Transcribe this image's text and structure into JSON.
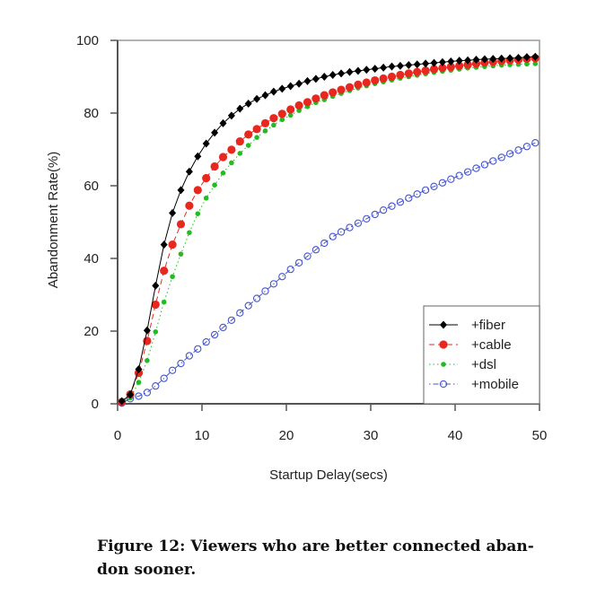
{
  "chart_data": {
    "type": "line",
    "xlabel": "Startup Delay(secs)",
    "ylabel": "Abandonment Rate(%)",
    "xlim": [
      0,
      50
    ],
    "ylim": [
      0,
      100
    ],
    "xticks": [
      "0",
      "10",
      "20",
      "30",
      "40",
      "50"
    ],
    "yticks": [
      "0",
      "20",
      "40",
      "60",
      "80",
      "100"
    ],
    "legend_position": "bottom-right",
    "x": [
      0.5,
      1.5,
      2.5,
      3.5,
      4.5,
      5.5,
      6.5,
      7.5,
      8.5,
      9.5,
      10.5,
      11.5,
      12.5,
      13.5,
      14.5,
      15.5,
      16.5,
      17.5,
      18.5,
      19.5,
      20.5,
      21.5,
      22.5,
      23.5,
      24.5,
      25.5,
      26.5,
      27.5,
      28.5,
      29.5,
      30.5,
      31.5,
      32.5,
      33.5,
      34.5,
      35.5,
      36.5,
      37.5,
      38.5,
      39.5,
      40.5,
      41.5,
      42.5,
      43.5,
      44.5,
      45.5,
      46.5,
      47.5,
      48.5,
      49.5
    ],
    "series": [
      {
        "name": "+fiber",
        "color": "#000000",
        "marker": "diamond",
        "line": "solid",
        "values": [
          0.7,
          2.5,
          9.5,
          20.2,
          32.5,
          43.8,
          52.5,
          58.8,
          63.9,
          68.1,
          71.6,
          74.6,
          77.2,
          79.3,
          81.2,
          82.6,
          83.9,
          84.9,
          85.9,
          86.7,
          87.4,
          88.1,
          88.8,
          89.4,
          90.0,
          90.5,
          90.9,
          91.3,
          91.6,
          91.9,
          92.2,
          92.5,
          92.8,
          93.0,
          93.2,
          93.4,
          93.6,
          93.8,
          94.0,
          94.2,
          94.4,
          94.5,
          94.7,
          94.8,
          94.9,
          95.0,
          95.1,
          95.2,
          95.4,
          95.5
        ]
      },
      {
        "name": "+cable",
        "color": "#e8281e",
        "marker": "filled-circle",
        "line": "dashed",
        "values": [
          0.5,
          2.6,
          8.5,
          17.3,
          27.3,
          36.6,
          43.8,
          49.4,
          54.5,
          58.8,
          62.1,
          65.3,
          67.9,
          69.9,
          72.2,
          74.1,
          75.6,
          77.2,
          78.6,
          79.8,
          81.0,
          82.1,
          83.0,
          84.0,
          84.9,
          85.7,
          86.4,
          87.1,
          87.8,
          88.4,
          89.0,
          89.5,
          90.0,
          90.5,
          90.9,
          91.3,
          91.7,
          92.1,
          92.4,
          92.7,
          93.0,
          93.3,
          93.6,
          93.9,
          94.1,
          94.3,
          94.5,
          94.7,
          94.9,
          95.1
        ]
      },
      {
        "name": "+dsl",
        "color": "#22bb22",
        "marker": "small-circle",
        "line": "dotted",
        "values": [
          0.3,
          1.6,
          5.9,
          11.9,
          19.8,
          28.0,
          35.0,
          41.2,
          47.1,
          52.3,
          56.6,
          60.2,
          63.5,
          66.3,
          68.9,
          71.1,
          73.3,
          75.1,
          76.7,
          78.2,
          79.4,
          80.7,
          81.8,
          82.9,
          83.7,
          84.6,
          85.4,
          86.2,
          86.9,
          87.5,
          88.1,
          88.6,
          89.1,
          89.6,
          90.0,
          90.4,
          90.8,
          91.2,
          91.5,
          91.8,
          92.1,
          92.4,
          92.6,
          92.8,
          93.0,
          93.2,
          93.3,
          93.4,
          93.5,
          93.6
        ]
      },
      {
        "name": "+mobile",
        "color": "#4455cc",
        "marker": "open-circle",
        "line": "dotdash",
        "values": [
          0.2,
          1.4,
          2.1,
          3.1,
          4.9,
          7.0,
          9.2,
          11.1,
          13.2,
          15.1,
          17.0,
          19.0,
          21.0,
          23.0,
          25.0,
          27.0,
          29.0,
          31.0,
          33.0,
          35.0,
          37.0,
          38.8,
          40.6,
          42.4,
          44.2,
          46.0,
          47.3,
          48.5,
          49.7,
          50.9,
          52.1,
          53.3,
          54.4,
          55.5,
          56.6,
          57.7,
          58.8,
          59.8,
          60.8,
          61.8,
          62.8,
          63.8,
          64.8,
          65.8,
          66.8,
          67.8,
          68.8,
          69.8,
          70.8,
          71.8
        ]
      }
    ]
  },
  "caption": {
    "line1": "Figure 12: Viewers who are better connected aban-",
    "line2": "don sooner."
  }
}
